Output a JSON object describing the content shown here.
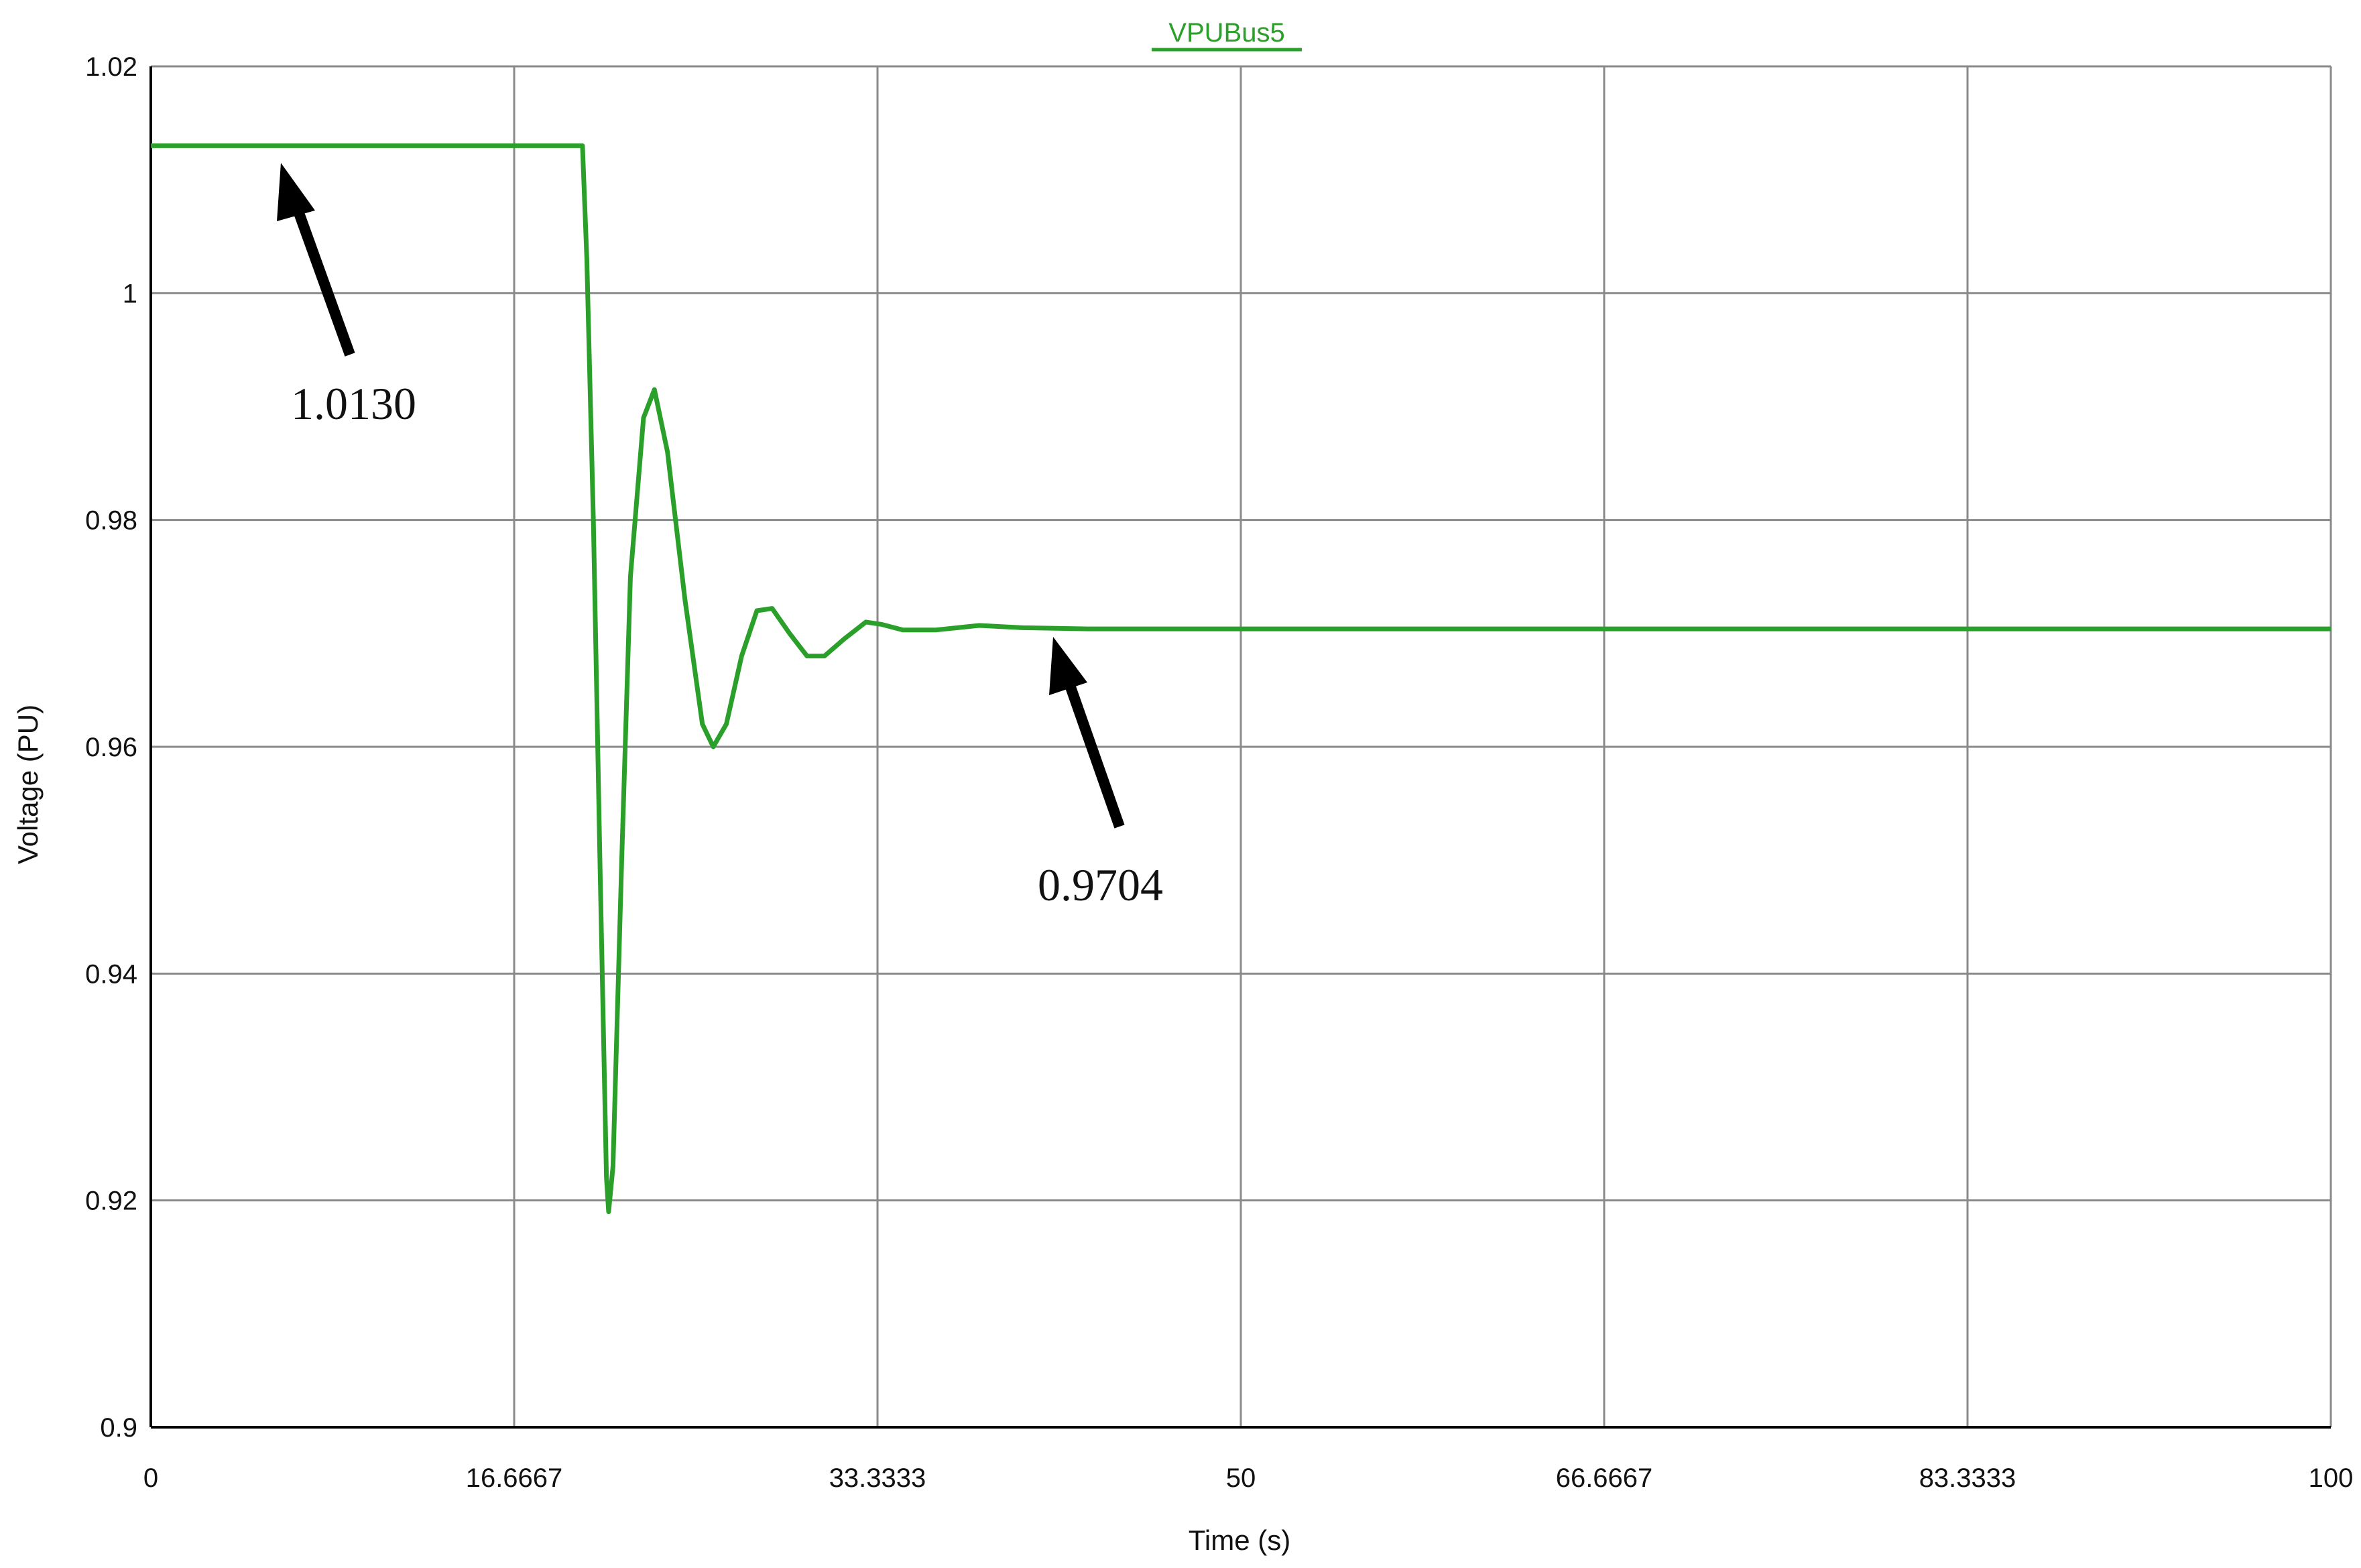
{
  "chart_data": {
    "type": "line",
    "title": "VPUBus5",
    "x_label": "Time (s)",
    "y_label": "Voltage (PU)",
    "x": [
      0,
      19.8,
      20.0,
      20.3,
      20.6,
      20.9,
      21.0,
      21.2,
      21.6,
      22.0,
      22.6,
      23.1,
      23.7,
      24.5,
      25.3,
      25.8,
      26.4,
      27.1,
      27.8,
      28.5,
      29.3,
      30.1,
      30.9,
      31.8,
      32.8,
      33.5,
      34.5,
      36.0,
      38.0,
      40.0,
      43.0,
      100
    ],
    "series": [
      {
        "name": "VPUBus5",
        "color": "#2aa02a",
        "values": [
          1.013,
          1.013,
          1.003,
          0.98,
          0.95,
          0.922,
          0.919,
          0.923,
          0.95,
          0.975,
          0.989,
          0.9915,
          0.986,
          0.973,
          0.962,
          0.96,
          0.962,
          0.968,
          0.972,
          0.9722,
          0.97,
          0.968,
          0.968,
          0.9695,
          0.971,
          0.9708,
          0.9703,
          0.9703,
          0.9707,
          0.9705,
          0.9704,
          0.9704
        ]
      }
    ],
    "xlim": [
      0,
      100
    ],
    "xticks": [
      0,
      16.6667,
      33.3333,
      50,
      66.6667,
      83.3333,
      100
    ],
    "ylim": [
      0.9,
      1.02
    ],
    "yticks": [
      0.9,
      0.92,
      0.94,
      0.96,
      0.98,
      1,
      1.02
    ],
    "grid": true,
    "annotations": [
      "1.0130",
      "0.9704"
    ]
  }
}
